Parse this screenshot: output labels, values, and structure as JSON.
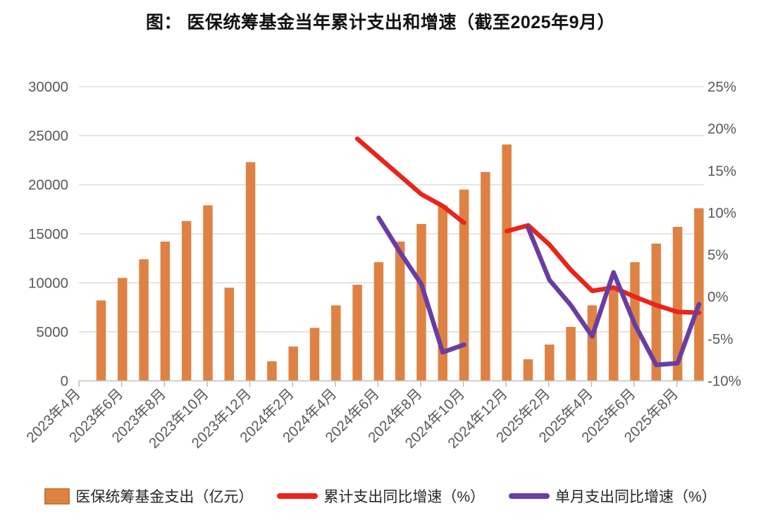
{
  "title": "图： 医保统筹基金当年累计支出和增速（截至2025年9月）",
  "legend": {
    "items": [
      {
        "label": "医保统筹基金支出（亿元）",
        "type": "bar",
        "color": "#DE8244"
      },
      {
        "label": "累计支出同比增速（%）",
        "type": "line",
        "color": "#E8251B"
      },
      {
        "label": "单月支出同比增速（%）",
        "type": "line",
        "color": "#6A3DA3"
      }
    ]
  },
  "colors": {
    "bar_fill": "#DE8244",
    "bar_border": "#C4772F",
    "cumulative_line": "#E8251B",
    "monthly_line": "#6A3DA3",
    "gridline": "#D9D9D9",
    "axis_line": "#C0C0C0",
    "axis_text": "#595959",
    "title_text": "#111111"
  },
  "chart_data": {
    "type": "bar",
    "subtype": "combo-bar-line-dual-axis",
    "title": "图： 医保统筹基金当年累计支出和增速（截至2025年9月）",
    "categories": [
      "2023年4月",
      "2023年5月",
      "2023年6月",
      "2023年7月",
      "2023年8月",
      "2023年9月",
      "2023年10月",
      "2023年11月",
      "2023年12月",
      "2024年1月",
      "2024年2月",
      "2024年3月",
      "2024年4月",
      "2024年5月",
      "2024年6月",
      "2024年7月",
      "2024年8月",
      "2024年9月",
      "2024年10月",
      "2024年11月",
      "2024年12月",
      "2025年1月",
      "2025年2月",
      "2025年3月",
      "2025年4月",
      "2025年5月",
      "2025年6月",
      "2025年7月",
      "2025年8月",
      "2025年9月"
    ],
    "x_tick_labels": [
      "2023年4月",
      "2023年6月",
      "2023年8月",
      "2023年10月",
      "2023年12月",
      "2024年2月",
      "2024年4月",
      "2024年6月",
      "2024年8月",
      "2024年10月",
      "2024年12月",
      "2025年2月",
      "2025年4月",
      "2025年6月",
      "2025年8月"
    ],
    "x_tick_every": 2,
    "series": [
      {
        "name": "医保统筹基金支出（亿元）",
        "type": "bar",
        "axis": "left",
        "color": "#DE8244",
        "values": [
          null,
          8200,
          10500,
          12400,
          14200,
          16300,
          17900,
          9500,
          22300,
          2000,
          3500,
          5400,
          7700,
          9800,
          12100,
          14200,
          16000,
          17900,
          19500,
          21300,
          24100,
          2200,
          3700,
          5500,
          7700,
          9700,
          12100,
          14000,
          15700,
          17600
        ]
      },
      {
        "name": "累计支出同比增速（%）",
        "type": "line",
        "axis": "right",
        "color": "#E8251B",
        "values": [
          null,
          null,
          null,
          null,
          null,
          null,
          null,
          null,
          null,
          null,
          null,
          null,
          null,
          18.8,
          16.6,
          14.4,
          12.2,
          10.8,
          8.8,
          null,
          7.8,
          8.5,
          6.2,
          3.2,
          0.7,
          1.1,
          0.0,
          -1.0,
          -1.8,
          -1.9
        ]
      },
      {
        "name": "单月支出同比增速（%）",
        "type": "line",
        "axis": "right",
        "color": "#6A3DA3",
        "values": [
          null,
          null,
          null,
          null,
          null,
          null,
          null,
          null,
          null,
          null,
          null,
          null,
          null,
          null,
          9.4,
          5.3,
          1.5,
          -6.6,
          -5.7,
          null,
          null,
          8.2,
          2.0,
          -1.0,
          -4.7,
          2.9,
          -3.3,
          -8.1,
          -7.9,
          -0.9
        ]
      }
    ],
    "y_left": {
      "min": 0,
      "max": 30000,
      "tick_step": 5000,
      "tick_labels": [
        "0",
        "5000",
        "10000",
        "15000",
        "20000",
        "25000",
        "30000"
      ]
    },
    "y_right": {
      "min": -10,
      "max": 25,
      "tick_step": 5,
      "tick_labels": [
        "-10%",
        "-5%",
        "0%",
        "5%",
        "10%",
        "15%",
        "20%",
        "25%"
      ]
    },
    "grid": "horizontal",
    "legend_position": "bottom"
  }
}
